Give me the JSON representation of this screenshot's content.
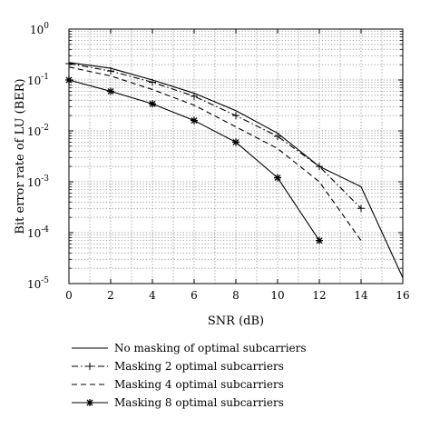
{
  "chart_data": {
    "type": "line",
    "xlabel": "SNR (dB)",
    "ylabel": "Bit error rate of LU (BER)",
    "xlim": [
      0,
      16
    ],
    "ylim": [
      1e-05,
      1
    ],
    "yscale": "log",
    "grid": true,
    "legend_position": "below plot",
    "x_ticks": [
      "0",
      "2",
      "4",
      "6",
      "8",
      "10",
      "12",
      "14",
      "16"
    ],
    "y_ticks": [
      {
        "base": "10",
        "exp": "0",
        "value": 1
      },
      {
        "base": "10",
        "exp": "-1",
        "value": 0.1
      },
      {
        "base": "10",
        "exp": "-2",
        "value": 0.01
      },
      {
        "base": "10",
        "exp": "-3",
        "value": 0.001
      },
      {
        "base": "10",
        "exp": "-4",
        "value": 0.0001
      },
      {
        "base": "10",
        "exp": "-5",
        "value": 1e-05
      }
    ],
    "series": [
      {
        "name": "No masking of optimal subcarriers",
        "style": "solid",
        "marker": "none",
        "x": [
          0,
          2,
          4,
          6,
          8,
          10,
          12,
          14,
          16
        ],
        "y": [
          0.22,
          0.17,
          0.1,
          0.055,
          0.025,
          0.009,
          0.002,
          0.0008,
          1.3e-05
        ]
      },
      {
        "name": "Masking 2 optimal subcarriers",
        "style": "dashdot",
        "marker": "plus",
        "x": [
          0,
          2,
          4,
          6,
          8,
          10,
          12,
          14
        ],
        "y": [
          0.21,
          0.15,
          0.09,
          0.048,
          0.02,
          0.0078,
          0.002,
          0.0003
        ]
      },
      {
        "name": "Masking 4 optimal subcarriers",
        "style": "dashed",
        "marker": "none",
        "x": [
          0,
          2,
          4,
          6,
          8,
          10,
          12,
          14
        ],
        "y": [
          0.18,
          0.12,
          0.065,
          0.032,
          0.012,
          0.0045,
          0.001,
          7e-05
        ]
      },
      {
        "name": "Masking 8 optimal subcarriers",
        "style": "solid",
        "marker": "asterisk",
        "x": [
          0,
          2,
          4,
          6,
          8,
          10,
          12
        ],
        "y": [
          0.1,
          0.06,
          0.034,
          0.016,
          0.006,
          0.0012,
          7e-05
        ]
      }
    ]
  }
}
